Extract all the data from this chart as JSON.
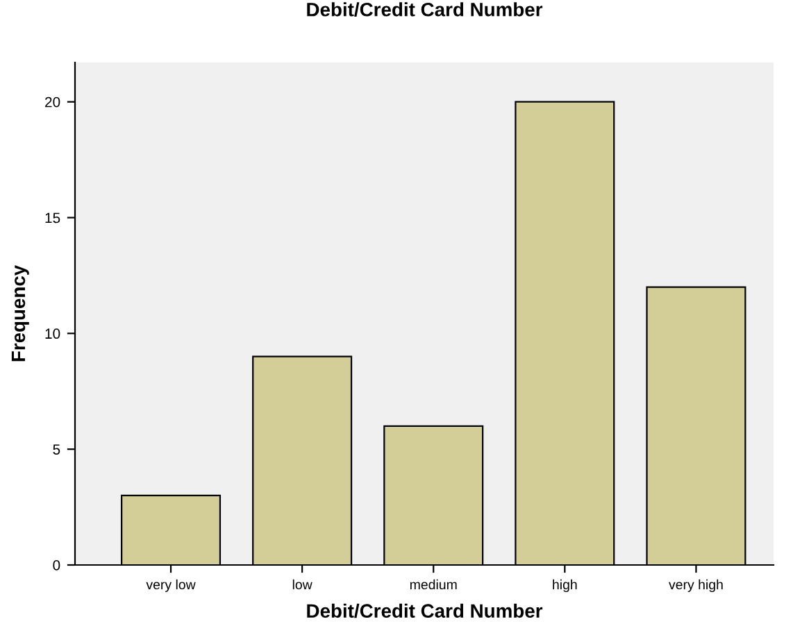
{
  "chart_data": {
    "type": "bar",
    "title": "Debit/Credit Card Number",
    "xlabel": "Debit/Credit Card Number",
    "ylabel": "Frequency",
    "categories": [
      "very low",
      "low",
      "medium",
      "high",
      "very high"
    ],
    "values": [
      3,
      9,
      6,
      20,
      12
    ],
    "color": "#d3ce98",
    "ylim": [
      0,
      21.7
    ],
    "yticks": [
      0,
      5,
      10,
      15,
      20
    ],
    "grid": false,
    "legend": false
  }
}
